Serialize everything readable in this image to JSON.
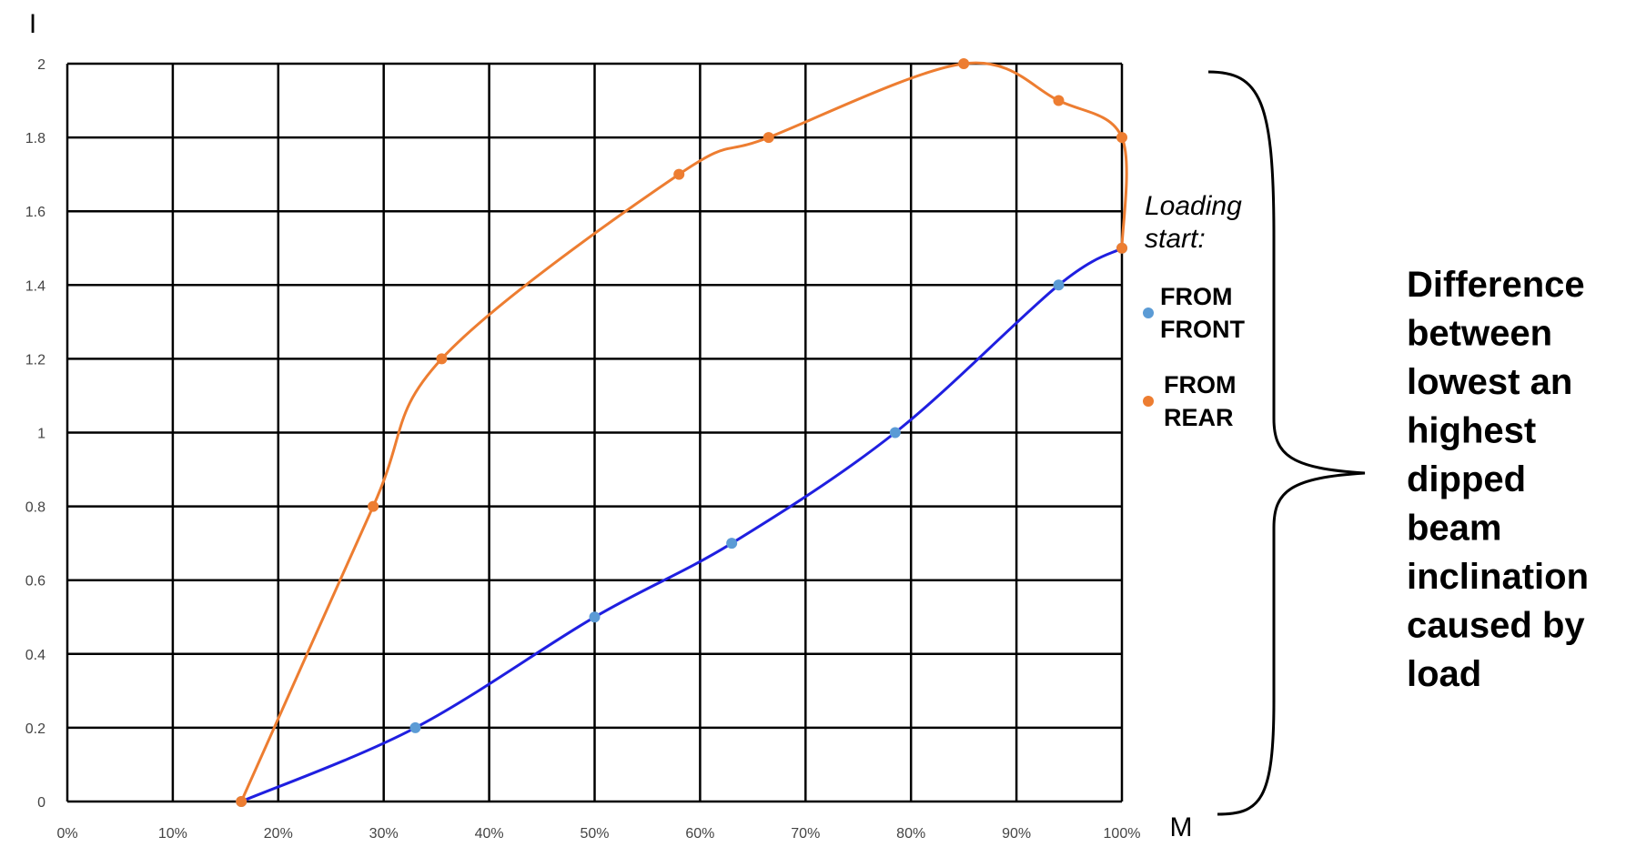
{
  "chart_data": {
    "type": "line",
    "x_ticks": [
      "0%",
      "10%",
      "20%",
      "30%",
      "40%",
      "50%",
      "60%",
      "70%",
      "80%",
      "90%",
      "100%"
    ],
    "y_ticks": [
      "0",
      "0.2",
      "0.4",
      "0.6",
      "0.8",
      "1",
      "1.2",
      "1.4",
      "1.6",
      "1.8",
      "2"
    ],
    "xlim": [
      0,
      100
    ],
    "ylim": [
      0,
      2
    ],
    "xlabel": "M",
    "ylabel": "I",
    "grid": true,
    "legend": {
      "title_lines": [
        "Loading",
        "start:"
      ],
      "placement": "right",
      "entries": [
        {
          "lines": [
            "FROM",
            "FRONT"
          ],
          "color": "#5B9BD5"
        },
        {
          "lines": [
            "FROM",
            "REAR"
          ],
          "color": "#ED7D31"
        }
      ]
    },
    "series": [
      {
        "name": "FROM FRONT",
        "marker_color": "#5B9BD5",
        "line_color": "#1F1FE0",
        "x": [
          16.5,
          33,
          50,
          63,
          78.5,
          94,
          100
        ],
        "y": [
          0,
          0.2,
          0.5,
          0.7,
          1.0,
          1.4,
          1.5
        ]
      },
      {
        "name": "FROM REAR",
        "marker_color": "#ED7D31",
        "line_color": "#ED7D31",
        "x": [
          16.5,
          29,
          35.5,
          58,
          66.5,
          85,
          94,
          100,
          100
        ],
        "y": [
          0,
          0.8,
          1.2,
          1.7,
          1.8,
          2.0,
          1.9,
          1.8,
          1.5
        ]
      }
    ]
  },
  "annotation": {
    "lines": [
      "Difference",
      "between",
      "lowest an",
      "highest",
      "dipped",
      "beam",
      "inclination",
      "caused by",
      "load"
    ]
  }
}
